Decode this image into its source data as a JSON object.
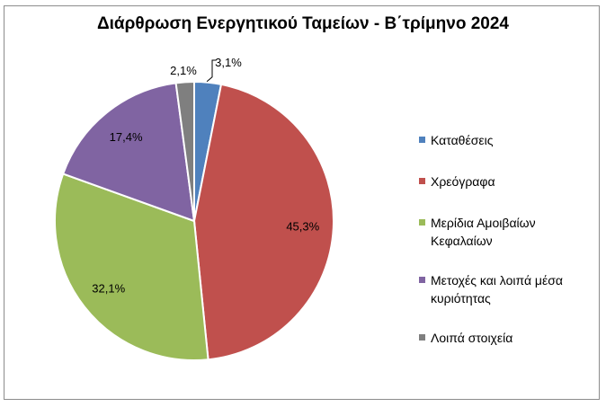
{
  "chart_data": {
    "type": "pie",
    "title": "Διάρθρωση Ενεργητικού Ταμείων - Β΄τρίμηνο 2024",
    "categories": [
      "Καταθέσεις",
      "Χρεόγραφα",
      "Μερίδια Αμοιβαίων Κεφαλαίων",
      "Μετοχές και λοιπά μέσα κυριότητας",
      "Λοιπά στοιχεία"
    ],
    "values": [
      3.1,
      45.3,
      32.1,
      17.4,
      2.1
    ],
    "labels": [
      "3,1%",
      "45,3%",
      "32,1%",
      "17,4%",
      "2,1%"
    ],
    "colors": [
      "#4f81bd",
      "#c0504d",
      "#9bbb59",
      "#8064a2",
      "#7f7f7f"
    ],
    "legend_position": "right",
    "start_angle_deg": 0,
    "direction": "clockwise"
  }
}
